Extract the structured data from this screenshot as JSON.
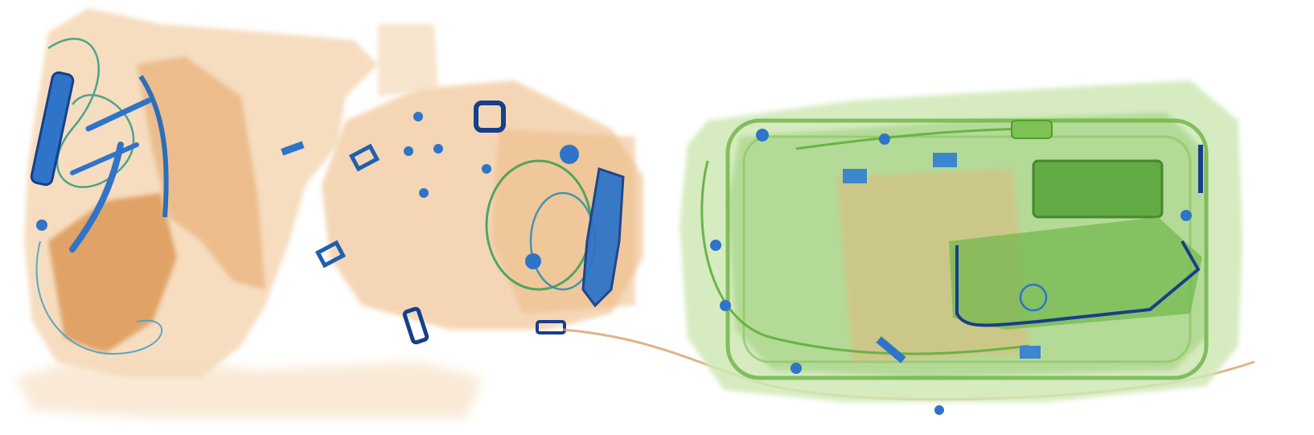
{
  "image": {
    "kind": "x-ray baggage scan",
    "background": "#ffffff",
    "palette": {
      "organic": "#e9a35a",
      "organic_dark": "#c97a2c",
      "mixed": "#7fc24a",
      "mixed_dark": "#4f9e2c",
      "metal": "#2f74c8",
      "metal_dark": "#173f8a"
    },
    "objects": [
      {
        "name": "left-bag",
        "material": "organic"
      },
      {
        "name": "middle-bag",
        "material": "organic"
      },
      {
        "name": "right-case",
        "material": "mixed"
      },
      {
        "name": "connecting-strap",
        "material": "organic"
      }
    ]
  }
}
